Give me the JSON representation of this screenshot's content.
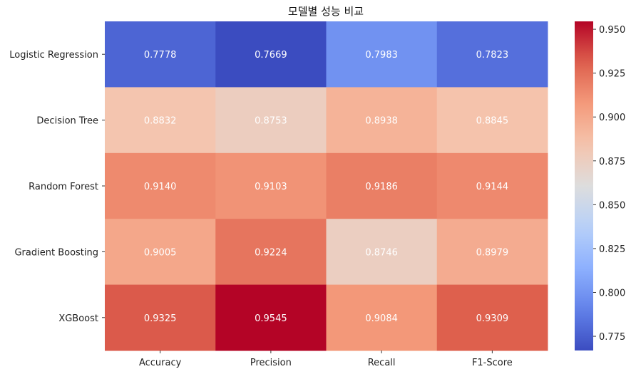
{
  "chart_data": {
    "type": "heatmap",
    "title": "모델별 성능 비교",
    "rows": [
      "Logistic Regression",
      "Decision Tree",
      "Random Forest",
      "Gradient Boosting",
      "XGBoost"
    ],
    "columns": [
      "Accuracy",
      "Precision",
      "Recall",
      "F1-Score"
    ],
    "values": [
      [
        0.7778,
        0.7669,
        0.7983,
        0.7823
      ],
      [
        0.8832,
        0.8753,
        0.8938,
        0.8845
      ],
      [
        0.914,
        0.9103,
        0.9186,
        0.9144
      ],
      [
        0.9005,
        0.9224,
        0.8746,
        0.8979
      ],
      [
        0.9325,
        0.9545,
        0.9084,
        0.9309
      ]
    ],
    "value_labels": [
      [
        "0.7778",
        "0.7669",
        "0.7983",
        "0.7823"
      ],
      [
        "0.8832",
        "0.8753",
        "0.8938",
        "0.8845"
      ],
      [
        "0.9140",
        "0.9103",
        "0.9186",
        "0.9144"
      ],
      [
        "0.9005",
        "0.9224",
        "0.8746",
        "0.8979"
      ],
      [
        "0.9325",
        "0.9545",
        "0.9084",
        "0.9309"
      ]
    ],
    "colormap": "coolwarm",
    "vmin": 0.7669,
    "vmax": 0.9545,
    "colorbar": {
      "ticks": [
        0.775,
        0.8,
        0.825,
        0.85,
        0.875,
        0.9,
        0.925,
        0.95
      ],
      "tick_labels": [
        "0.775",
        "0.800",
        "0.825",
        "0.850",
        "0.875",
        "0.900",
        "0.925",
        "0.950"
      ]
    },
    "colors": {
      "low": "#3b4cc0",
      "mid": "#dddddd",
      "high": "#b40426"
    }
  }
}
